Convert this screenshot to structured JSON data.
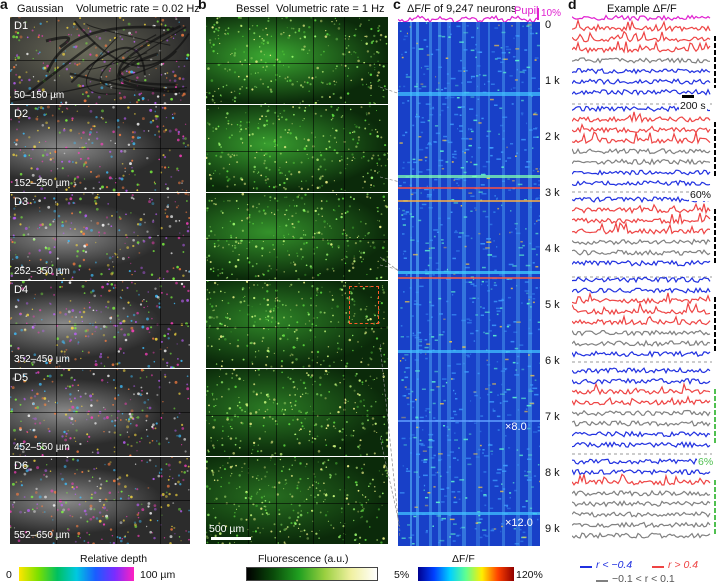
{
  "panelA": {
    "letter": "a",
    "method": "Gaussian",
    "rate": "Volumetric rate = 0.02 Hz",
    "rows": [
      {
        "id": "D1",
        "depth": "50–150 µm"
      },
      {
        "id": "D2",
        "depth": "152–250 µm"
      },
      {
        "id": "D3",
        "depth": "252–350 µm"
      },
      {
        "id": "D4",
        "depth": "352–450 µm"
      },
      {
        "id": "D5",
        "depth": "452–550 µm"
      },
      {
        "id": "D6",
        "depth": "552–650 µm"
      }
    ],
    "colorbar": {
      "title": "Relative depth",
      "min": "0",
      "max": "100 µm"
    }
  },
  "panelB": {
    "letter": "b",
    "method": "Bessel",
    "rate": "Volumetric rate = 1 Hz",
    "scalebar": "500 µm",
    "colorbar": {
      "title": "Fluorescence (a.u.)"
    }
  },
  "panelC": {
    "letter": "c",
    "title": "ΔF/F of 9,247 neurons",
    "pupil_label": "Pupil",
    "pupil_scale": "10%",
    "ticks": [
      "0",
      "1 k",
      "2 k",
      "3 k",
      "4 k",
      "5 k",
      "6 k",
      "7 k",
      "8 k",
      "9 k"
    ],
    "zoom1": "×8.0",
    "zoom2": "×12.0",
    "colorbar": {
      "title": "ΔF/F",
      "min": "5%",
      "max": "120%"
    }
  },
  "panelD": {
    "letter": "d",
    "title": "Example ΔF/F",
    "time_scale": "200 s",
    "dff_scale1": "60%",
    "dff_scale2": "6%",
    "legend": {
      "neg": "r < −0.4",
      "pos": "r > 0.4",
      "neutral": "−0.1 < r < 0.1"
    }
  },
  "colors": {
    "pupil": "#e020d0",
    "neg": "#2030e0",
    "pos": "#ee4444",
    "neutral": "#808080",
    "scale_green": "#50c050",
    "heat_bg": "#1840c8"
  }
}
